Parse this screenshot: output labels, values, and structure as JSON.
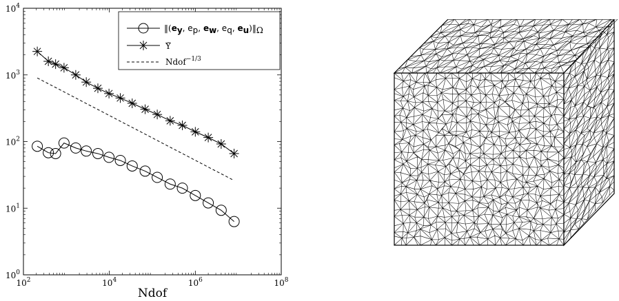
{
  "chart_data": {
    "type": "line",
    "xscale": "log",
    "yscale": "log",
    "xlim": [
      100,
      100000000
    ],
    "ylim": [
      1,
      10000
    ],
    "xlabel": "Ndof",
    "ylabel": "",
    "x_ticks": [
      {
        "value": 100,
        "base": "10",
        "exp": "2"
      },
      {
        "value": 10000,
        "base": "10",
        "exp": "4"
      },
      {
        "value": 1000000,
        "base": "10",
        "exp": "6"
      },
      {
        "value": 100000000,
        "base": "10",
        "exp": "8"
      }
    ],
    "y_ticks": [
      {
        "value": 1,
        "base": "10",
        "exp": "0"
      },
      {
        "value": 10,
        "base": "10",
        "exp": "1"
      },
      {
        "value": 100,
        "base": "10",
        "exp": "2"
      },
      {
        "value": 1000,
        "base": "10",
        "exp": "3"
      },
      {
        "value": 10000,
        "base": "10",
        "exp": "4"
      }
    ],
    "grid": false,
    "legend_position": "top-right",
    "legend": [
      {
        "marker": "circle",
        "line": "solid"
      },
      {
        "marker": "star",
        "line": "solid"
      },
      {
        "marker": "none",
        "line": "dashed"
      }
    ],
    "series": [
      {
        "marker": "circle",
        "line": "solid",
        "x": [
          210,
          380,
          560,
          880,
          1650,
          2900,
          5400,
          9800,
          18000,
          34000,
          68000,
          130000,
          260000,
          500000,
          1000000,
          2000000,
          4000000,
          8000000
        ],
        "y": [
          85,
          68,
          66,
          95,
          80,
          72,
          66,
          58,
          52,
          43,
          36,
          29,
          23,
          20,
          15.5,
          12,
          9.3,
          6.3
        ]
      },
      {
        "marker": "star",
        "line": "solid",
        "x": [
          210,
          380,
          560,
          880,
          1650,
          2900,
          5400,
          9800,
          18000,
          34000,
          68000,
          130000,
          260000,
          500000,
          1000000,
          2000000,
          4000000,
          8000000
        ],
        "y": [
          2250,
          1600,
          1450,
          1280,
          1000,
          780,
          630,
          525,
          450,
          375,
          305,
          255,
          205,
          175,
          140,
          115,
          92,
          66
        ]
      },
      {
        "marker": "none",
        "line": "dashed",
        "x": [
          210,
          8000000
        ],
        "y": [
          900,
          26
        ]
      }
    ]
  },
  "mesh_image": {
    "subject": "tetrahedral-mesh-cube",
    "stroke_color": "#000000"
  }
}
